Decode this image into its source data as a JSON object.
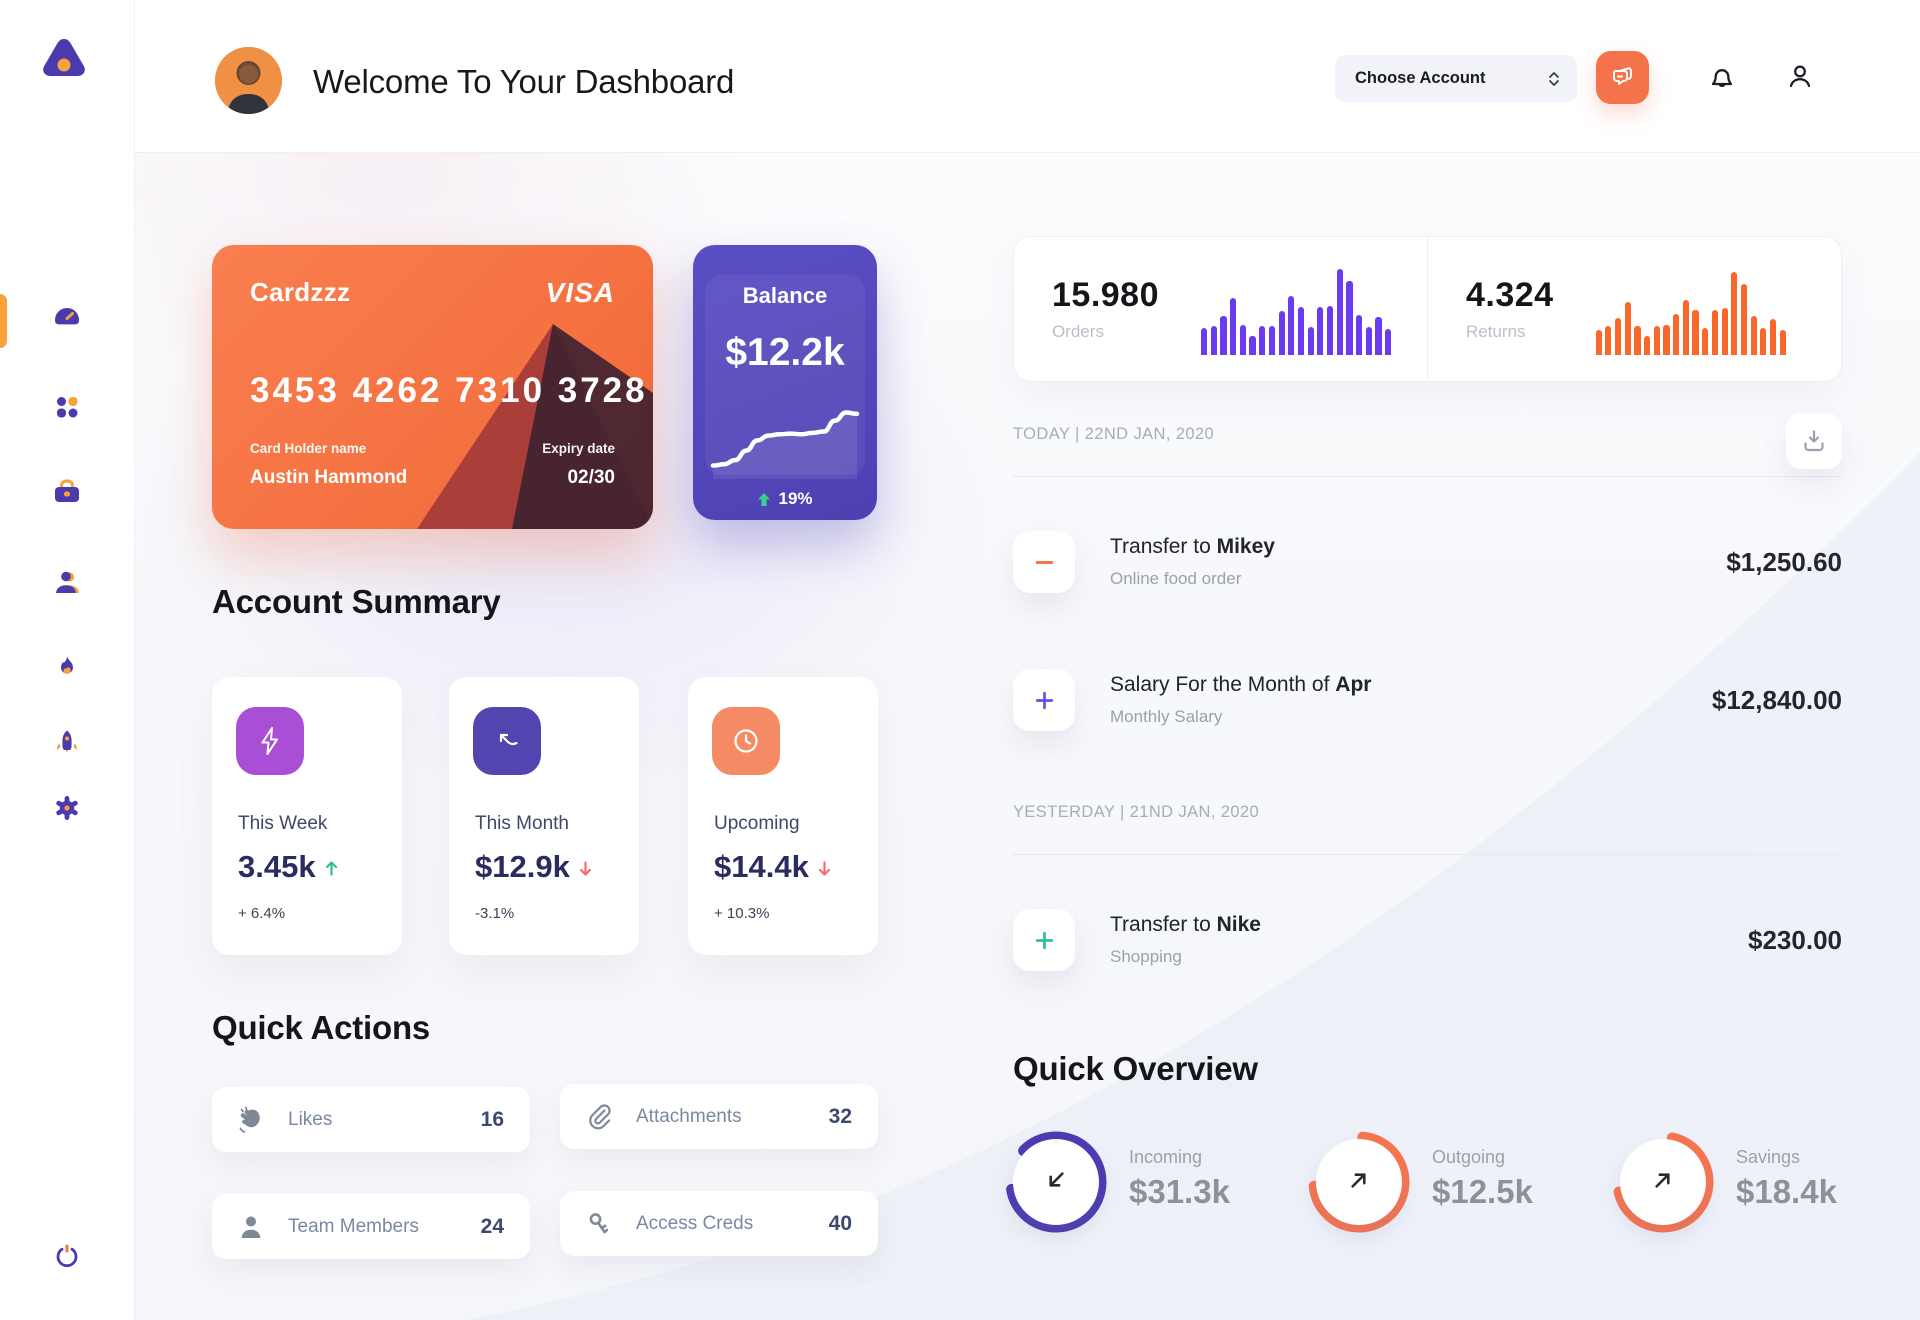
{
  "header": {
    "title": "Welcome To Your Dashboard",
    "account_selector": "Choose Account",
    "icons": [
      "chat-icon",
      "bell-icon",
      "profile-icon"
    ]
  },
  "sidebar": {
    "items": [
      {
        "icon": "dashboard",
        "active": true
      },
      {
        "icon": "apps",
        "active": false
      },
      {
        "icon": "portfolio",
        "active": false
      },
      {
        "icon": "team",
        "active": false
      },
      {
        "icon": "activity",
        "active": false
      },
      {
        "icon": "launch",
        "active": false
      },
      {
        "icon": "settings",
        "active": false
      }
    ],
    "logout_icon": "power"
  },
  "credit_card": {
    "name": "Cardzzz",
    "brand": "VISA",
    "number": "3453 4262 7310 3728",
    "holder_label": "Card Holder name",
    "holder": "Austin Hammond",
    "expiry_label": "Expiry date",
    "expiry": "02/30"
  },
  "balance_card": {
    "title": "Balance",
    "amount": "$12.2k",
    "change": "19%",
    "trend": "up",
    "line": [
      8,
      10,
      16,
      30,
      45,
      52,
      54,
      55,
      54,
      56,
      58,
      74,
      86,
      84
    ]
  },
  "stats": {
    "orders": {
      "value": "15.980",
      "label": "Orders",
      "color": "#6B3BF2",
      "bars": [
        29,
        32,
        42,
        62,
        33,
        21,
        32,
        32,
        48,
        64,
        52,
        30,
        52,
        53,
        93,
        80,
        44,
        30,
        41,
        28
      ]
    },
    "returns": {
      "value": "4.324",
      "label": "Returns",
      "color": "#F9682B",
      "bars": [
        27,
        31,
        40,
        58,
        32,
        21,
        31,
        33,
        45,
        60,
        49,
        29,
        49,
        51,
        90,
        77,
        42,
        29,
        39,
        27
      ]
    }
  },
  "transactions": {
    "download_icon": "download",
    "sections": [
      {
        "date": "TODAY | 22ND JAN, 2020",
        "rows": [
          {
            "icon": "minus",
            "icon_color": "#F4764E",
            "title_prefix": "Transfer to ",
            "title_bold": "Mikey",
            "subtitle": "Online food order",
            "amount": "$1,250.60"
          },
          {
            "icon": "plus",
            "icon_color": "#6352D9",
            "title_prefix": "Salary For the Month of ",
            "title_bold": "Apr",
            "subtitle": "Monthly Salary",
            "amount": "$12,840.00"
          }
        ]
      },
      {
        "date": "YESTERDAY | 21ND JAN, 2020",
        "rows": [
          {
            "icon": "plus",
            "icon_color": "#2FBF9F",
            "title_prefix": "Transfer to ",
            "title_bold": "Nike",
            "subtitle": "Shopping",
            "amount": "$230.00"
          }
        ]
      }
    ]
  },
  "account_summary": {
    "title": "Account Summary",
    "cards": [
      {
        "icon": "lightning",
        "icon_bg": "#A84FD6",
        "label": "This Week",
        "value": "3.45k",
        "trend": "up",
        "change": "+ 6.4%"
      },
      {
        "icon": "trend",
        "icon_bg": "#5245AF",
        "label": "This Month",
        "value": "$12.9k",
        "trend": "down",
        "change": "-3.1%"
      },
      {
        "icon": "clock",
        "icon_bg": "#F58B64",
        "label": "Upcoming",
        "value": "$14.4k",
        "trend": "down",
        "change": "+ 10.3%"
      }
    ]
  },
  "quick_actions": {
    "title": "Quick Actions",
    "items": [
      {
        "icon": "clap",
        "label": "Likes",
        "value": "16"
      },
      {
        "icon": "paperclip",
        "label": "Attachments",
        "value": "32"
      },
      {
        "icon": "member",
        "label": "Team Members",
        "value": "24"
      },
      {
        "icon": "key",
        "label": "Access Creds",
        "value": "40"
      }
    ]
  },
  "quick_overview": {
    "title": "Quick Overview",
    "items": [
      {
        "icon": "arrow-down-left",
        "label": "Incoming",
        "value": "$31.3k",
        "percent": 85,
        "color": "#4C3BB2"
      },
      {
        "icon": "arrow-up-right",
        "label": "Outgoing",
        "value": "$12.5k",
        "percent": 72,
        "color": "#F97450"
      },
      {
        "icon": "arrow-up-right",
        "label": "Savings",
        "value": "$18.4k",
        "percent": 68,
        "color": "#F97450"
      }
    ]
  },
  "colors": {
    "accent": "#F4734B",
    "amber": "#F9A13B",
    "purple": "#4A3AAE",
    "green": "#2FBE8F",
    "red": "#F26D6D"
  }
}
